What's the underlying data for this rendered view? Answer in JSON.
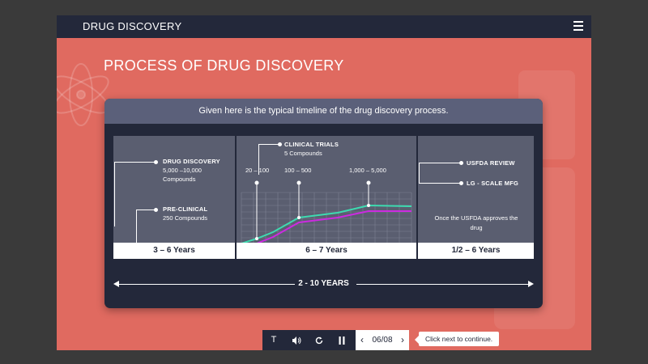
{
  "header": {
    "title": "DRUG DISCOVERY",
    "menu_icon": "hamburger-menu-icon"
  },
  "page": {
    "title": "PROCESS OF DRUG DISCOVERY"
  },
  "card": {
    "intro": "Given here is the typical timeline of the drug discovery process.",
    "stage1": {
      "drug_discovery": {
        "label": "DRUG DISCOVERY",
        "line1": "5,000 –10,000",
        "line2": "Compounds"
      },
      "pre_clinical": {
        "label": "PRE-CLINICAL",
        "line1": "250 Compounds"
      },
      "duration": "3 – 6 Years"
    },
    "stage2": {
      "clinical_trials": {
        "label": "CLINICAL TRIALS",
        "line1": "5 Compounds"
      },
      "markers": [
        "20 – 100",
        "100 – 500",
        "1,000 – 5,000"
      ],
      "duration": "6 – 7 Years"
    },
    "stage3": {
      "usfda_review": "USFDA REVIEW",
      "lg_scale_mfg": "LG - SCALE MFG",
      "note": "Once the USFDA approves the drug",
      "duration": "1/2 – 6 Years"
    },
    "total_span": "2 - 10 YEARS"
  },
  "controls": {
    "text_button": "T",
    "audio_icon": "speaker-icon",
    "replay_icon": "replay-icon",
    "pause_icon": "pause-icon",
    "prev_icon": "chevron-left-icon",
    "next_icon": "chevron-right-icon",
    "page_indicator": "06/08",
    "tooltip": "Click next to continue."
  },
  "colors": {
    "accent_bg": "#e06a60",
    "dark": "#23283a",
    "teal_line": "#3ddbb0",
    "magenta_line": "#cc2ae0"
  }
}
